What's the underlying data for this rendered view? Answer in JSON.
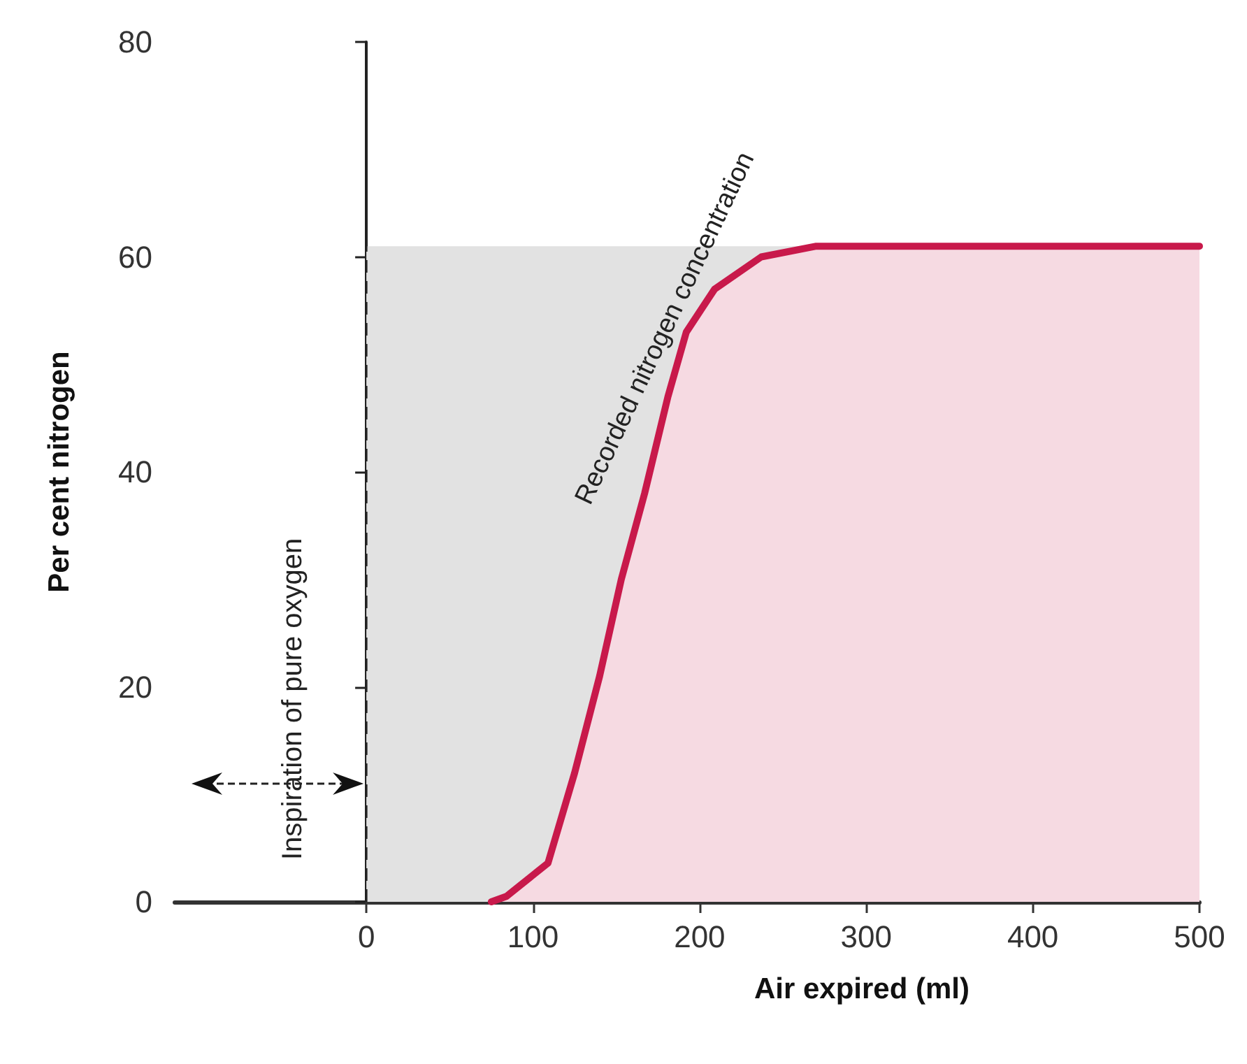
{
  "chart_data": {
    "type": "area",
    "xlabel": "Air expired (ml)",
    "ylabel": "Per cent nitrogen",
    "series": [
      {
        "color": "#e2e2e2",
        "x": [
          0,
          500
        ],
        "values": [
          61,
          61
        ],
        "line_style": "none"
      },
      {
        "color": "#c8194b",
        "x": [
          75,
          84,
          109,
          125,
          140,
          153,
          167,
          181,
          192,
          209,
          237,
          270,
          350,
          500
        ],
        "values": [
          0,
          0.5,
          3.6,
          12,
          21,
          30,
          38,
          47,
          53,
          57,
          60,
          61,
          61,
          61
        ]
      }
    ],
    "xlim": [
      -115,
      500
    ],
    "xticks": [
      0,
      100,
      200,
      300,
      400,
      500
    ],
    "ylim": [
      0,
      80
    ],
    "yticks": [
      0,
      20,
      40,
      60,
      80
    ],
    "ref_lines": [
      {
        "axis": "x",
        "value": 0,
        "label": "Inspiration of pure oxygen",
        "color": "#222222",
        "line_style": "dashed"
      }
    ],
    "annotations": [
      "Recorded nitrogen concentration"
    ],
    "grid": false,
    "marker": "none"
  }
}
